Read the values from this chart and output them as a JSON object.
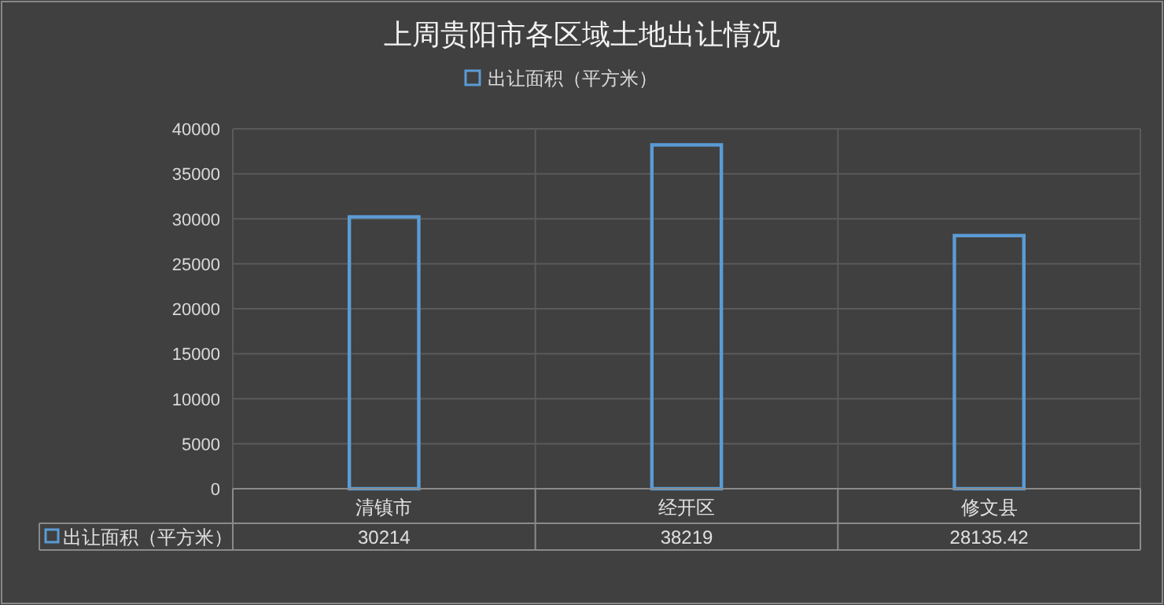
{
  "chart_data": {
    "type": "bar",
    "title": "上周贵阳市各区域土地出让情况",
    "categories": [
      "清镇市",
      "经开区",
      "修文县"
    ],
    "series": [
      {
        "name": "出让面积（平方米）",
        "color": "#5b9bd5",
        "values": [
          30214,
          38219,
          28135.42
        ]
      }
    ],
    "ylim": [
      0,
      40000
    ],
    "yticks": [
      0,
      5000,
      10000,
      15000,
      20000,
      25000,
      30000,
      35000,
      40000
    ],
    "grid": true,
    "legend": "top",
    "data_labels": true
  }
}
